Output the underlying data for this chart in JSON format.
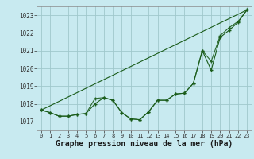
{
  "xlabel": "Graphe pression niveau de la mer (hPa)",
  "bg_color": "#c8eaf0",
  "grid_color": "#a0c8cc",
  "line_color": "#1a5c1a",
  "marker": "+",
  "xmin": -0.5,
  "xmax": 23.5,
  "ymin": 1016.5,
  "ymax": 1023.5,
  "yticks": [
    1017,
    1018,
    1019,
    1020,
    1021,
    1022,
    1023
  ],
  "xticks": [
    0,
    1,
    2,
    3,
    4,
    5,
    6,
    7,
    8,
    9,
    10,
    11,
    12,
    13,
    14,
    15,
    16,
    17,
    18,
    19,
    20,
    21,
    22,
    23
  ],
  "series1_x": [
    0,
    1,
    2,
    3,
    4,
    5,
    6,
    7,
    8,
    9,
    10,
    11,
    12,
    13,
    14,
    15,
    16,
    17,
    18,
    19,
    20,
    21,
    22,
    23
  ],
  "series1_y": [
    1017.65,
    1017.5,
    1017.3,
    1017.3,
    1017.4,
    1017.45,
    1018.0,
    1018.35,
    1018.2,
    1017.5,
    1017.15,
    1017.1,
    1017.55,
    1018.2,
    1018.2,
    1018.55,
    1018.6,
    1019.15,
    1021.0,
    1019.9,
    1021.75,
    1022.15,
    1022.6,
    1023.3
  ],
  "series2_x": [
    0,
    1,
    2,
    3,
    4,
    5,
    6,
    7,
    8,
    9,
    10,
    11,
    12,
    13,
    14,
    15,
    16,
    17,
    18,
    19,
    20,
    21,
    22,
    23
  ],
  "series2_y": [
    1017.65,
    1017.5,
    1017.3,
    1017.3,
    1017.4,
    1017.45,
    1018.3,
    1018.35,
    1018.2,
    1017.5,
    1017.15,
    1017.1,
    1017.55,
    1018.2,
    1018.2,
    1018.55,
    1018.6,
    1019.15,
    1021.0,
    1020.4,
    1021.85,
    1022.3,
    1022.65,
    1023.3
  ],
  "series3_x": [
    0,
    23
  ],
  "series3_y": [
    1017.65,
    1023.3
  ],
  "xlabel_fontsize": 7,
  "tick_fontsize": 5
}
